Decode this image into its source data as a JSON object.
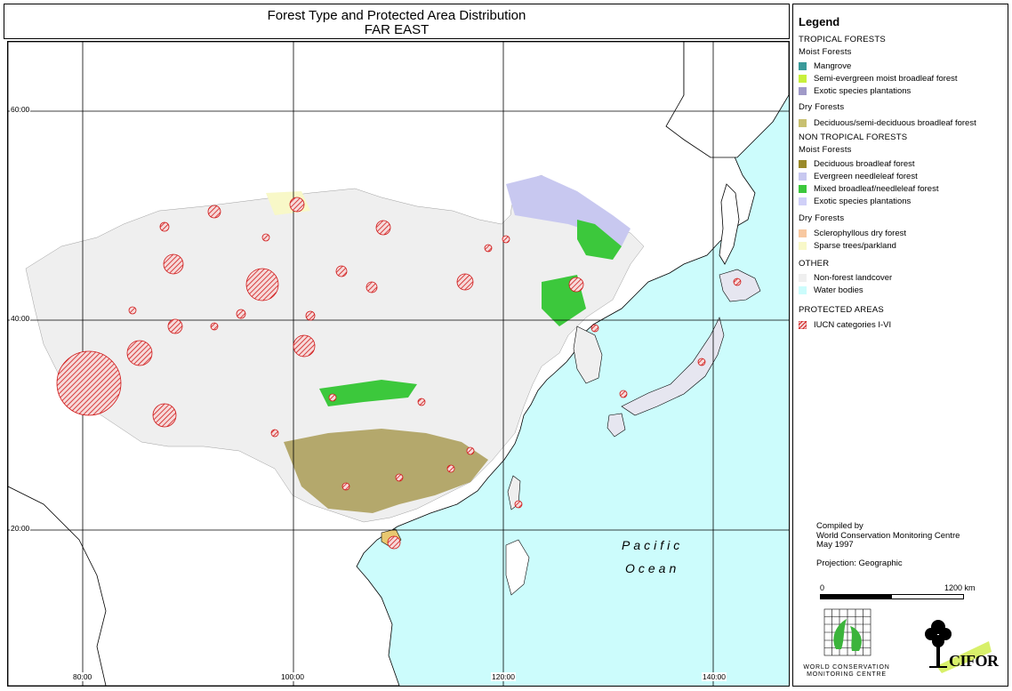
{
  "title": {
    "line1": "Forest Type and Protected Area Distribution",
    "line2": "FAR EAST"
  },
  "map": {
    "lat_labels": [
      "60:00",
      "40:00",
      "20:00"
    ],
    "lon_labels": [
      "80:00",
      "100:00",
      "120:00",
      "140:00"
    ],
    "ocean_label_1": "Pacific",
    "ocean_label_2": "Ocean"
  },
  "legend": {
    "title": "Legend",
    "tropical_header": "TROPICAL FORESTS",
    "tropical_moist_header": "Moist Forests",
    "tropical_moist_items": [
      {
        "label": "Mangrove",
        "color": "#3a9a9a"
      },
      {
        "label": "Semi-evergreen moist broadleaf forest",
        "color": "#c8f03c"
      },
      {
        "label": "Exotic species plantations",
        "color": "#a09ac8"
      }
    ],
    "tropical_dry_header": "Dry Forests",
    "tropical_dry_items": [
      {
        "label": "Deciduous/semi-deciduous broadleaf forest",
        "color": "#c8c070"
      }
    ],
    "nontropical_header": "NON TROPICAL FORESTS",
    "nontropical_moist_header": "Moist Forests",
    "nontropical_moist_items": [
      {
        "label": "Deciduous broadleaf forest",
        "color": "#9a8a2a"
      },
      {
        "label": "Evergreen needleleaf forest",
        "color": "#c8c8f0"
      },
      {
        "label": "Mixed broadleaf/needleleaf forest",
        "color": "#3cc83c"
      },
      {
        "label": "Exotic species plantations",
        "color": "#d0d0f8"
      }
    ],
    "nontropical_dry_header": "Dry Forests",
    "nontropical_dry_items": [
      {
        "label": "Sclerophyllous dry forest",
        "color": "#f8c8a0"
      },
      {
        "label": "Sparse trees/parkland",
        "color": "#f8f8c8"
      }
    ],
    "other_header": "OTHER",
    "other_items": [
      {
        "label": "Non-forest landcover",
        "color": "#efefef"
      },
      {
        "label": "Water bodies",
        "color": "#ccfcfc"
      }
    ],
    "protected_header": "PROTECTED AREAS",
    "protected_items": [
      {
        "label": "IUCN categories I-VI",
        "color": "#d02020"
      }
    ]
  },
  "credits": {
    "line1": "Compiled by",
    "line2": "World Conservation Monitoring Centre",
    "line3": "May 1997",
    "projection": "Projection: Geographic"
  },
  "scale": {
    "start": "0",
    "end": "1200 km"
  },
  "logos": {
    "wcmc_line1": "WORLD CONSERVATION",
    "wcmc_line2": "MONITORING CENTRE",
    "cifor": "CIFOR"
  }
}
